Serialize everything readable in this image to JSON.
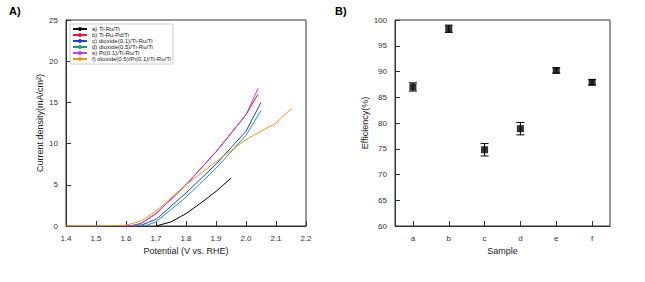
{
  "chart_data": [
    {
      "type": "line",
      "title": "A)",
      "x_label": "Potential (V vs. RHE)",
      "y_label": "Current density(mA/cm²)",
      "xlim": [
        1.4,
        2.2
      ],
      "xticks": [
        1.4,
        1.5,
        1.6,
        1.7,
        1.8,
        1.9,
        {
          "value": 2,
          "label": "2.0"
        },
        2.1,
        2.2
      ],
      "ylim": [
        0,
        25
      ],
      "yticks": [
        0,
        5,
        10,
        15,
        20,
        25
      ],
      "grid": false,
      "legend": "upper left",
      "series": [
        {
          "name": "a) Ti-Ru/Ti",
          "color": "#000000",
          "x": [
            1.7,
            1.75,
            1.8,
            1.85,
            1.9,
            1.95
          ],
          "values": [
            0,
            0.5,
            1.5,
            2.8,
            4.2,
            5.8
          ]
        },
        {
          "name": "b) Ti-Ru-Pd/Ti",
          "color": "#e8182a",
          "x": [
            1.6,
            1.62,
            1.65,
            1.7,
            1.8,
            1.9,
            2.0,
            2.04
          ],
          "values": [
            0,
            0.05,
            0.3,
            1.5,
            5,
            9,
            13.5,
            16
          ]
        },
        {
          "name": "c) dioxide(0.1)/Ti-Ru/Ti",
          "color": "#1f3fd8",
          "x": [
            1.6,
            1.65,
            1.7,
            1.8,
            1.9,
            2.0,
            2.05
          ],
          "values": [
            0,
            0.1,
            0.8,
            4,
            7.5,
            11.5,
            15
          ]
        },
        {
          "name": "d) dioxide(0.5)/Ti-Ru/Ti",
          "color": "#1a9e8a",
          "x": [
            1.62,
            1.67,
            1.7,
            1.8,
            1.9,
            2.0,
            2.05
          ],
          "values": [
            0,
            0.1,
            0.5,
            3.5,
            7,
            11,
            14
          ]
        },
        {
          "name": "e) Pt(0.1)/Ti-Ru/Ti",
          "color": "#c03fd8",
          "x": [
            1.58,
            1.62,
            1.65,
            1.7,
            1.8,
            1.9,
            2.0,
            2.04
          ],
          "values": [
            0,
            0.05,
            0.3,
            1.5,
            5,
            9,
            13.5,
            16.7
          ]
        },
        {
          "name": "f) dioxide(0.5)/Pt(0.1)/Ti-Ru/Ti",
          "color": "#f0961e",
          "x": [
            1.4,
            1.5,
            1.6,
            1.65,
            1.7,
            1.8,
            1.9,
            2.0,
            2.1,
            2.15
          ],
          "values": [
            0,
            0,
            0.1,
            0.6,
            1.8,
            5,
            7.8,
            10.5,
            12.5,
            14.2
          ]
        }
      ]
    },
    {
      "type": "scatter",
      "title": "B)",
      "x_label": "Sample",
      "y_label": "Efficiency(%)",
      "categories": [
        "a",
        "b",
        "c",
        "d",
        "e",
        "f"
      ],
      "values": [
        87,
        98.3,
        74.8,
        78.9,
        90.2,
        87.9
      ],
      "errors": [
        0.8,
        0.7,
        1.2,
        1.2,
        0.5,
        0.5
      ],
      "color": "#000000",
      "marker": "square",
      "ylim": [
        60,
        100
      ],
      "yticks": [
        60,
        65,
        70,
        75,
        80,
        85,
        90,
        95,
        100
      ],
      "grid": false
    }
  ]
}
